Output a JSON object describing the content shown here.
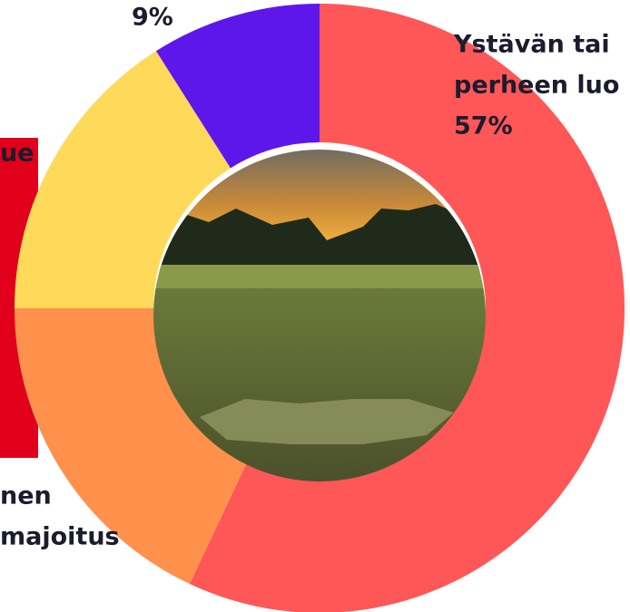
{
  "chart_data": {
    "type": "donut",
    "categories": [
      [
        "Ystävän tai",
        "perheen luo"
      ],
      [
        "nen",
        "majoitus"
      ],
      [
        "ue"
      ],
      null
    ],
    "values": [
      57,
      18,
      16,
      9
    ],
    "value_labels": [
      "57%",
      null,
      null,
      "9%"
    ],
    "colors": [
      "#ff5757",
      "#ff914d",
      "#ffd95a",
      "#5e17eb"
    ]
  }
}
